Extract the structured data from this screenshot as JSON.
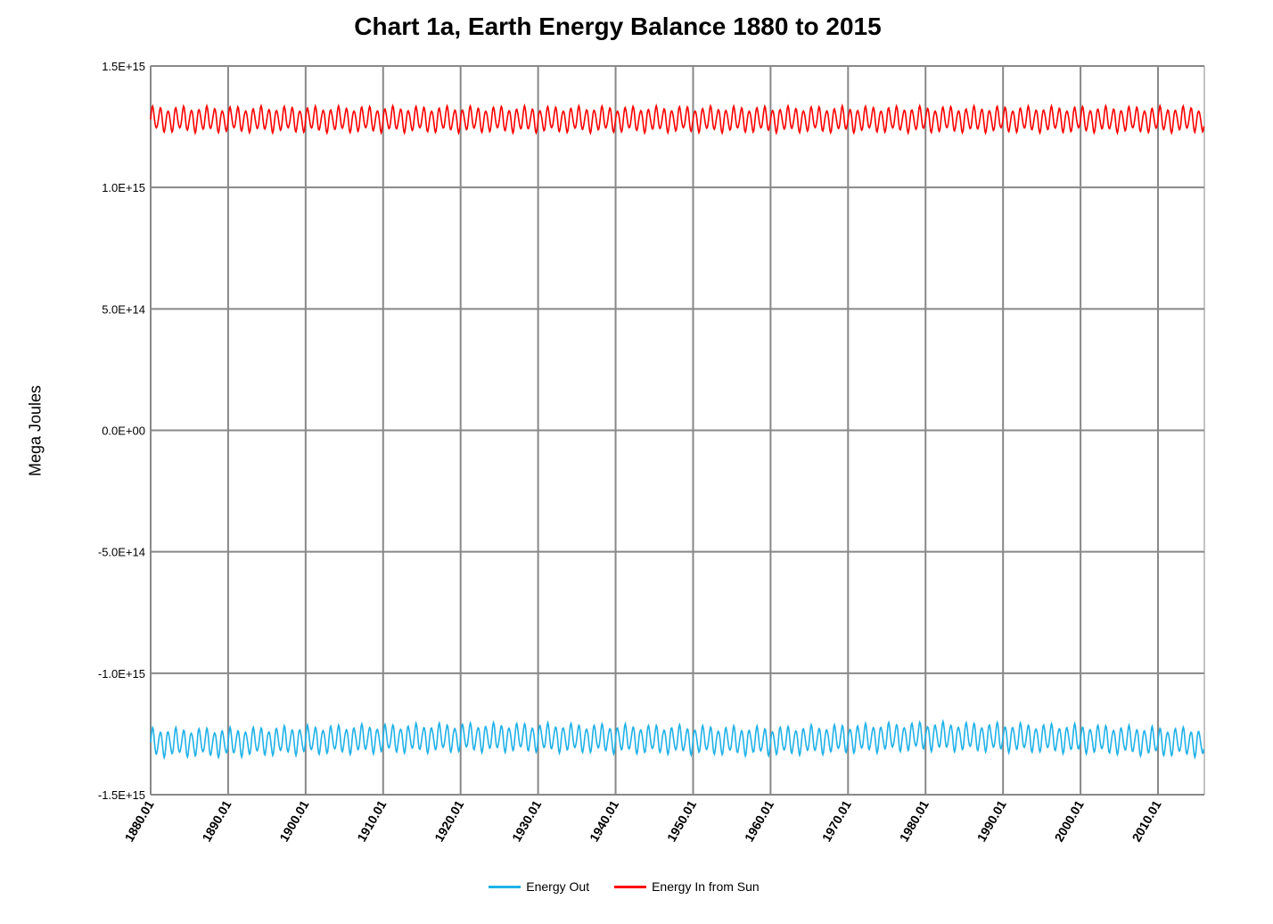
{
  "chart_data": {
    "type": "line",
    "title": "Chart 1a, Earth Energy Balance 1880 to 2015",
    "xlabel": "",
    "ylabel": "Mega Joules",
    "ylim": [
      -1500000000000000.0,
      1500000000000000.0
    ],
    "xlim": [
      1880.01,
      2015.99
    ],
    "y_tick_labels": [
      "1.5E+15",
      "1.0E+15",
      "5.0E+14",
      "0.0E+00",
      "-5.0E+14",
      "-1.0E+15",
      "-1.5E+15"
    ],
    "y_ticks": [
      1500000000000000.0,
      1000000000000000.0,
      500000000000000.0,
      0,
      -500000000000000.0,
      -1000000000000000.0,
      -1500000000000000.0
    ],
    "x_tick_labels": [
      "1880.01",
      "1890.01",
      "1900.01",
      "1910.01",
      "1920.01",
      "1930.01",
      "1940.01",
      "1950.01",
      "1960.01",
      "1970.01",
      "1980.01",
      "1990.01",
      "2000.01",
      "2010.01"
    ],
    "x_ticks": [
      1880.01,
      1890.01,
      1900.01,
      1910.01,
      1920.01,
      1930.01,
      1940.01,
      1950.01,
      1960.01,
      1970.01,
      1980.01,
      1990.01,
      2000.01,
      2010.01
    ],
    "grid": true,
    "legend_position": "bottom",
    "series": [
      {
        "name": "Energy Out",
        "color": "#1fb2e8",
        "description_values": {
          "mean": -1270000000000000.0,
          "amplitude": 50000000000000.0,
          "cycle": "annual"
        },
        "mean_by_decade": [
          {
            "x": 1880.01,
            "y": -1285000000000000.0
          },
          {
            "x": 1890.01,
            "y": -1285000000000000.0
          },
          {
            "x": 1900.01,
            "y": -1275000000000000.0
          },
          {
            "x": 1910.01,
            "y": -1270000000000000.0
          },
          {
            "x": 1920.01,
            "y": -1265000000000000.0
          },
          {
            "x": 1930.01,
            "y": -1265000000000000.0
          },
          {
            "x": 1940.01,
            "y": -1270000000000000.0
          },
          {
            "x": 1950.01,
            "y": -1275000000000000.0
          },
          {
            "x": 1960.01,
            "y": -1280000000000000.0
          },
          {
            "x": 1970.01,
            "y": -1270000000000000.0
          },
          {
            "x": 1980.01,
            "y": -1260000000000000.0
          },
          {
            "x": 1990.01,
            "y": -1265000000000000.0
          },
          {
            "x": 2000.01,
            "y": -1270000000000000.0
          },
          {
            "x": 2010.01,
            "y": -1280000000000000.0
          },
          {
            "x": 2015.99,
            "y": -1285000000000000.0
          }
        ]
      },
      {
        "name": "Energy In from Sun",
        "color": "#ff0000",
        "description_values": {
          "mean": 1280000000000000.0,
          "amplitude": 45000000000000.0,
          "cycle": "annual"
        },
        "mean_by_decade": [
          {
            "x": 1880.01,
            "y": 1280000000000000.0
          },
          {
            "x": 2015.99,
            "y": 1280000000000000.0
          }
        ]
      }
    ]
  }
}
